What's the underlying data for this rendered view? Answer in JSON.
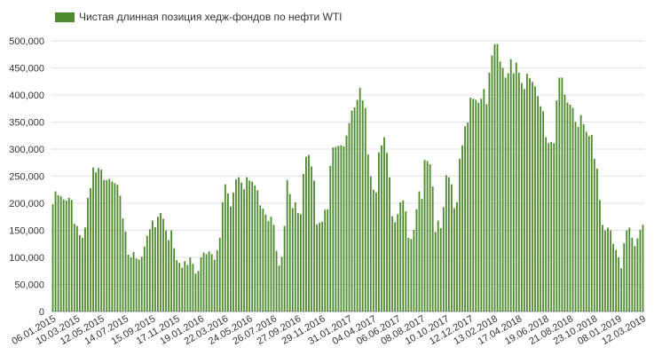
{
  "chart_data": {
    "type": "bar",
    "legend": {
      "position": "top-left",
      "entries": [
        "Чистая длинная позиция хедж-фондов по нефти WTI"
      ]
    },
    "series": [
      {
        "name": "Чистая длинная позиция хедж-фондов по нефти WTI",
        "color": "#4e8a2e",
        "values": [
          198000,
          222000,
          215000,
          213000,
          207000,
          205000,
          210000,
          206000,
          162000,
          158000,
          141000,
          136000,
          155000,
          210000,
          228000,
          266000,
          257000,
          265000,
          262000,
          243000,
          243000,
          245000,
          240000,
          237000,
          234000,
          214000,
          172000,
          148000,
          105000,
          100000,
          110000,
          98000,
          96000,
          101000,
          120000,
          140000,
          152000,
          168000,
          156000,
          175000,
          182000,
          171000,
          150000,
          132000,
          150000,
          117000,
          95000,
          90000,
          81000,
          93000,
          86000,
          100000,
          88000,
          70000,
          75000,
          100000,
          109000,
          106000,
          111000,
          106000,
          96000,
          113000,
          136000,
          202000,
          235000,
          218000,
          194000,
          220000,
          244000,
          248000,
          238000,
          226000,
          248000,
          242000,
          240000,
          233000,
          224000,
          196000,
          190000,
          179000,
          167000,
          175000,
          160000,
          112000,
          85000,
          101000,
          158000,
          243000,
          217000,
          191000,
          202000,
          182000,
          180000,
          254000,
          286000,
          289000,
          268000,
          242000,
          161000,
          164000,
          166000,
          188000,
          189000,
          269000,
          303000,
          304000,
          306000,
          307000,
          305000,
          325000,
          348000,
          371000,
          377000,
          391000,
          413000,
          390000,
          376000,
          290000,
          250000,
          225000,
          220000,
          294000,
          307000,
          322000,
          293000,
          248000,
          176000,
          165000,
          180000,
          202000,
          205000,
          185000,
          136000,
          134000,
          151000,
          189000,
          222000,
          208000,
          280000,
          278000,
          272000,
          231000,
          147000,
          168000,
          154000,
          193000,
          252000,
          248000,
          235000,
          191000,
          202000,
          282000,
          307000,
          342000,
          349000,
          395000,
          393000,
          391000,
          386000,
          393000,
          411000,
          383000,
          441000,
          473000,
          494000,
          494000,
          462000,
          450000,
          432000,
          440000,
          466000,
          440000,
          460000,
          441000,
          422000,
          411000,
          439000,
          431000,
          424000,
          416000,
          398000,
          379000,
          370000,
          322000,
          311000,
          313000,
          311000,
          390000,
          432000,
          432000,
          401000,
          386000,
          382000,
          376000,
          350000,
          341000,
          363000,
          346000,
          332000,
          324000,
          326000,
          282000,
          264000,
          206000,
          160000,
          150000,
          155000,
          150000,
          125000,
          114000,
          100000,
          80000,
          126000,
          150000,
          155000,
          136000,
          121000,
          135000,
          151000,
          160000
        ]
      }
    ],
    "xticks": [
      "06.01.2015",
      "10.03.2015",
      "12.05.2015",
      "14.07.2015",
      "15.09.2015",
      "17.11.2015",
      "19.01.2016",
      "22.03.2016",
      "24.05.2016",
      "26.07.2016",
      "27.09.2016",
      "29.11.2016",
      "31.01.2017",
      "04.04.2017",
      "06.06.2017",
      "08.08.2017",
      "10.10.2017",
      "12.12.2017",
      "13.02.2018",
      "17.04.2018",
      "19.06.2018",
      "21.08.2018",
      "23.10.2018",
      "08.01.2019",
      "12.03.2019"
    ],
    "yticks": [
      "0",
      "50,000",
      "100,000",
      "150,000",
      "200,000",
      "250,000",
      "300,000",
      "350,000",
      "400,000",
      "450,000",
      "500,000"
    ],
    "ylim": [
      0,
      500000
    ],
    "grid": true
  }
}
